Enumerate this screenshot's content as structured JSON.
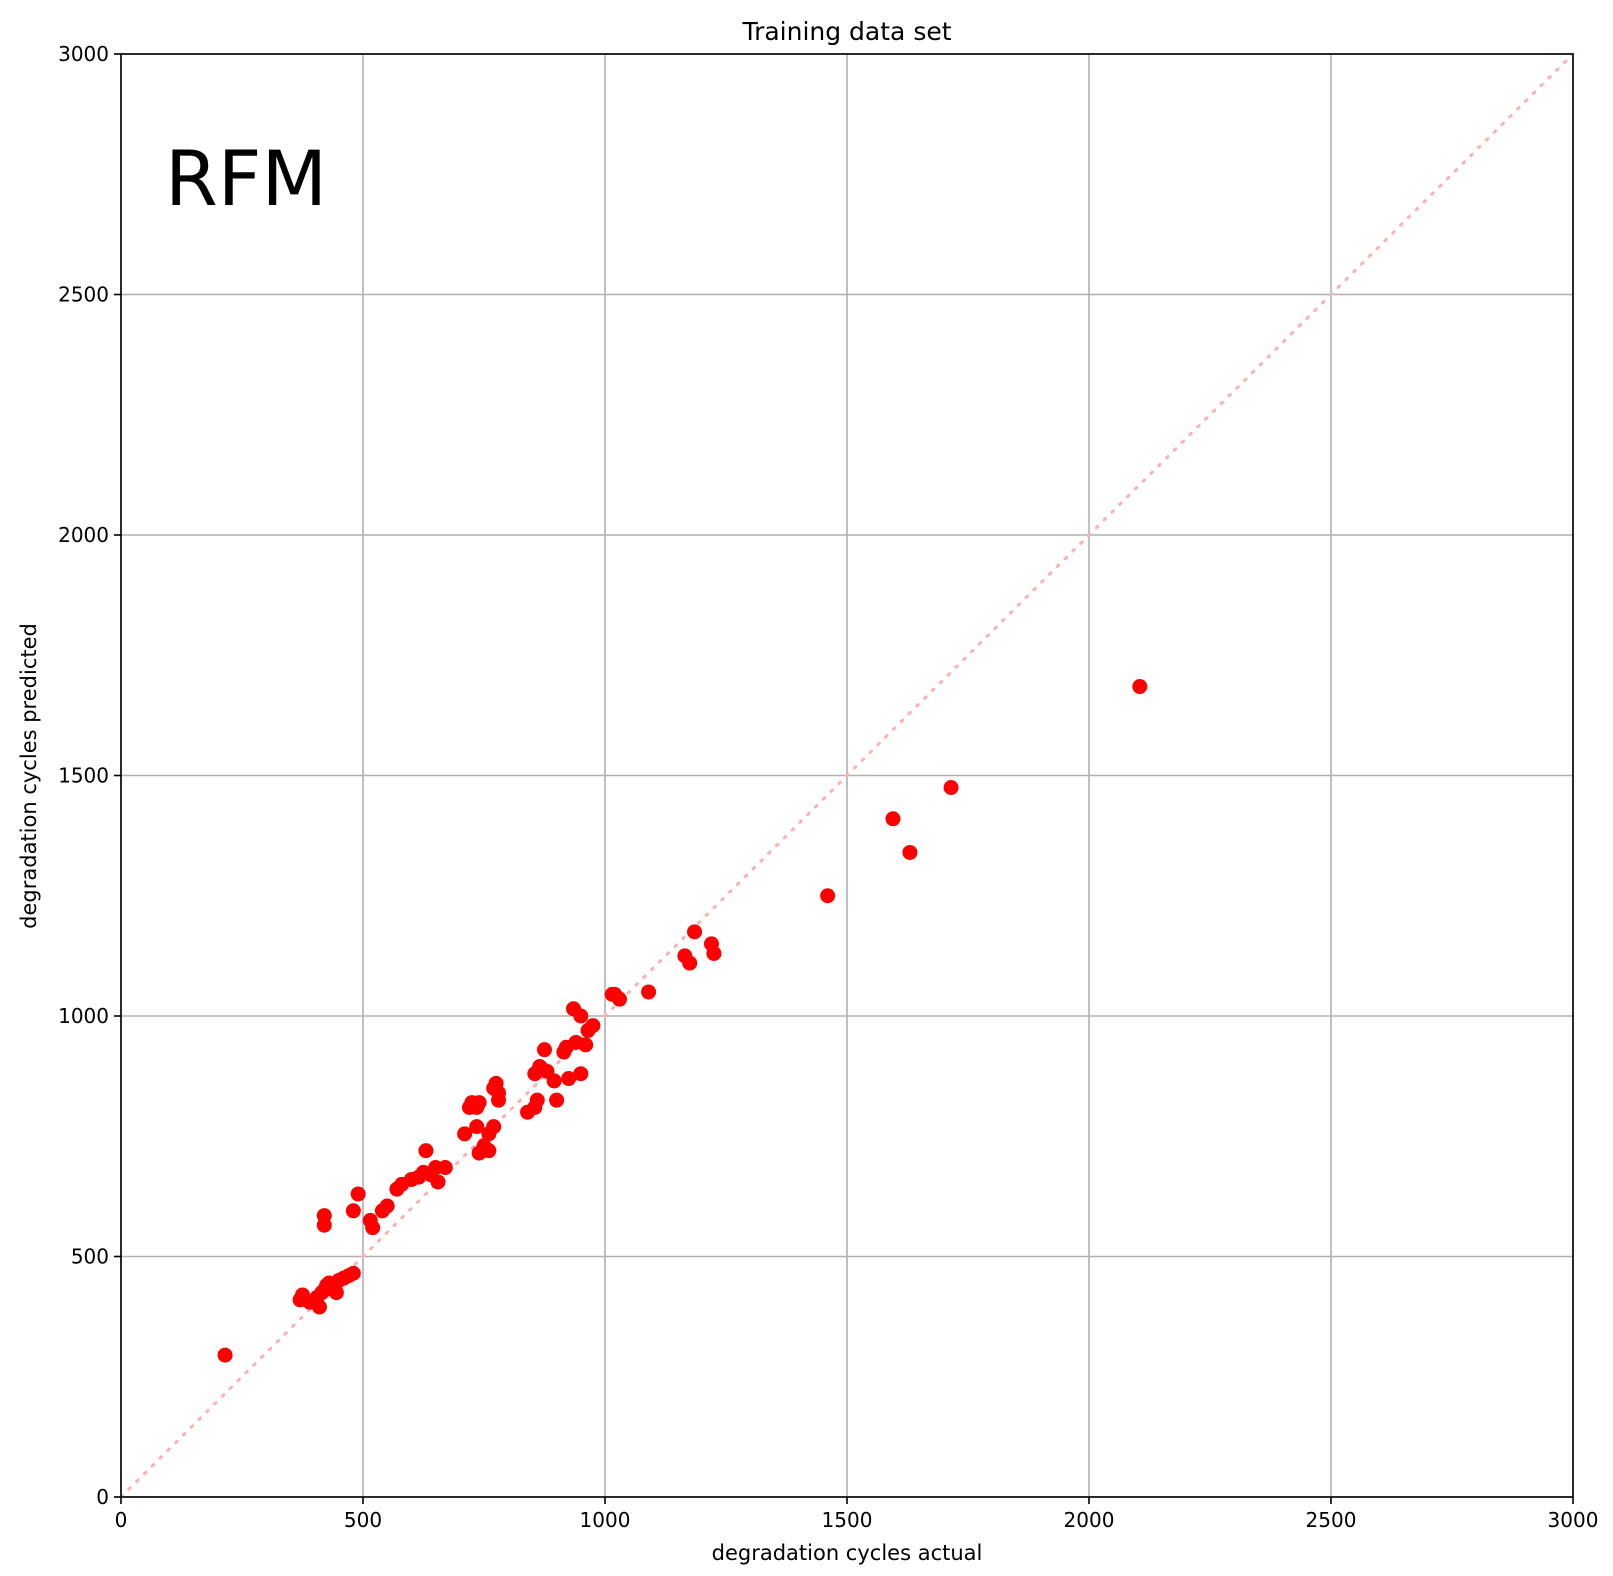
{
  "chart_data": {
    "type": "scatter",
    "title": "Training data set",
    "xlabel": "degradation cycles actual",
    "ylabel": "degradation cycles predicted",
    "annotation": "RFM",
    "xlim": [
      0,
      3000
    ],
    "ylim": [
      0,
      3000
    ],
    "xticks": [
      "0",
      "500",
      "1000",
      "1500",
      "2000",
      "2500",
      "3000"
    ],
    "yticks": [
      "0",
      "500",
      "1000",
      "1500",
      "2000",
      "2500",
      "3000"
    ],
    "grid": true,
    "marker_color": "#ff0000",
    "reference_line": {
      "style": "dotted",
      "color": "#ffb0b0",
      "from": [
        0,
        0
      ],
      "to": [
        3000,
        3000
      ]
    },
    "series": [
      {
        "points": [
          [
            215,
            295
          ],
          [
            370,
            410
          ],
          [
            375,
            420
          ],
          [
            390,
            405
          ],
          [
            405,
            415
          ],
          [
            410,
            395
          ],
          [
            415,
            425
          ],
          [
            420,
            430
          ],
          [
            425,
            440
          ],
          [
            430,
            445
          ],
          [
            440,
            435
          ],
          [
            445,
            425
          ],
          [
            450,
            450
          ],
          [
            460,
            455
          ],
          [
            470,
            460
          ],
          [
            480,
            465
          ],
          [
            420,
            585
          ],
          [
            420,
            565
          ],
          [
            480,
            595
          ],
          [
            490,
            630
          ],
          [
            515,
            575
          ],
          [
            520,
            560
          ],
          [
            540,
            595
          ],
          [
            550,
            605
          ],
          [
            570,
            640
          ],
          [
            580,
            650
          ],
          [
            600,
            660
          ],
          [
            615,
            665
          ],
          [
            625,
            675
          ],
          [
            630,
            720
          ],
          [
            640,
            670
          ],
          [
            650,
            685
          ],
          [
            655,
            655
          ],
          [
            670,
            685
          ],
          [
            710,
            755
          ],
          [
            720,
            810
          ],
          [
            725,
            820
          ],
          [
            735,
            810
          ],
          [
            740,
            820
          ],
          [
            735,
            770
          ],
          [
            740,
            715
          ],
          [
            750,
            730
          ],
          [
            760,
            720
          ],
          [
            760,
            755
          ],
          [
            770,
            770
          ],
          [
            770,
            850
          ],
          [
            775,
            860
          ],
          [
            780,
            840
          ],
          [
            780,
            825
          ],
          [
            840,
            800
          ],
          [
            855,
            810
          ],
          [
            855,
            880
          ],
          [
            860,
            825
          ],
          [
            865,
            895
          ],
          [
            870,
            890
          ],
          [
            875,
            930
          ],
          [
            880,
            885
          ],
          [
            895,
            865
          ],
          [
            900,
            825
          ],
          [
            915,
            925
          ],
          [
            920,
            935
          ],
          [
            925,
            870
          ],
          [
            935,
            1015
          ],
          [
            940,
            945
          ],
          [
            950,
            1000
          ],
          [
            950,
            880
          ],
          [
            960,
            940
          ],
          [
            965,
            970
          ],
          [
            975,
            980
          ],
          [
            1015,
            1045
          ],
          [
            1020,
            1045
          ],
          [
            1030,
            1035
          ],
          [
            1090,
            1050
          ],
          [
            1165,
            1125
          ],
          [
            1175,
            1110
          ],
          [
            1185,
            1175
          ],
          [
            1220,
            1150
          ],
          [
            1225,
            1130
          ],
          [
            1460,
            1250
          ],
          [
            1595,
            1410
          ],
          [
            1630,
            1340
          ],
          [
            1715,
            1475
          ],
          [
            2105,
            1685
          ]
        ]
      }
    ]
  }
}
